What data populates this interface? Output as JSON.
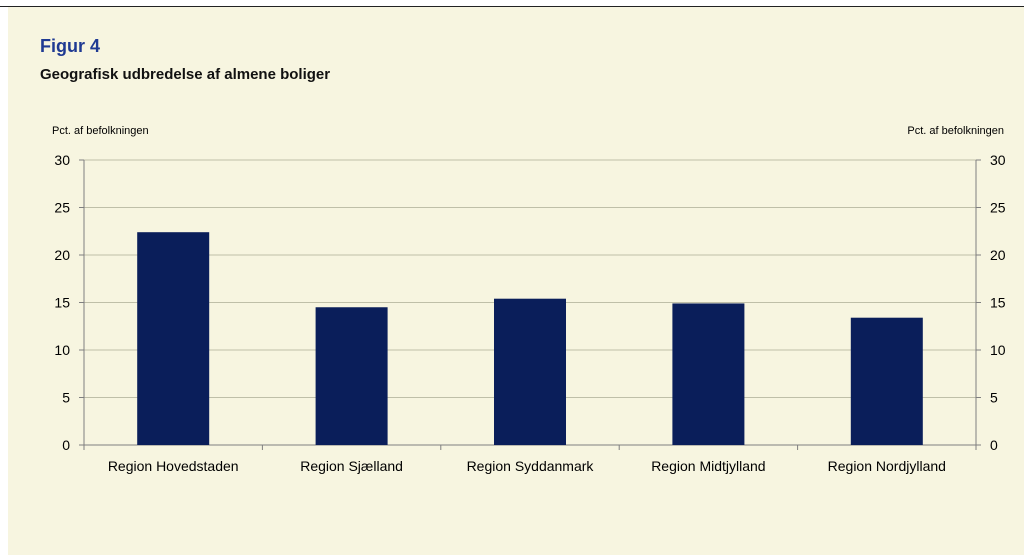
{
  "figure": {
    "label": "Figur 4",
    "title": "Geografisk udbredelse af almene boliger"
  },
  "chart_data": {
    "type": "bar",
    "title": "Geografisk udbredelse af almene boliger",
    "ylabel_left": "Pct. af befolkningen",
    "ylabel_right": "Pct. af befolkningen",
    "ylim": [
      0,
      30
    ],
    "yticks": [
      0,
      5,
      10,
      15,
      20,
      25,
      30
    ],
    "grid": true,
    "categories": [
      "Region Hovedstaden",
      "Region Sjælland",
      "Region Syddanmark",
      "Region Midtjylland",
      "Region Nordjylland"
    ],
    "values": [
      22.4,
      14.5,
      15.4,
      14.9,
      13.4
    ],
    "colors": {
      "bar": "#0a1e5a",
      "grid": "#bfbfa8",
      "axis": "#7f7f7f",
      "panel": "#f7f5e0"
    }
  }
}
